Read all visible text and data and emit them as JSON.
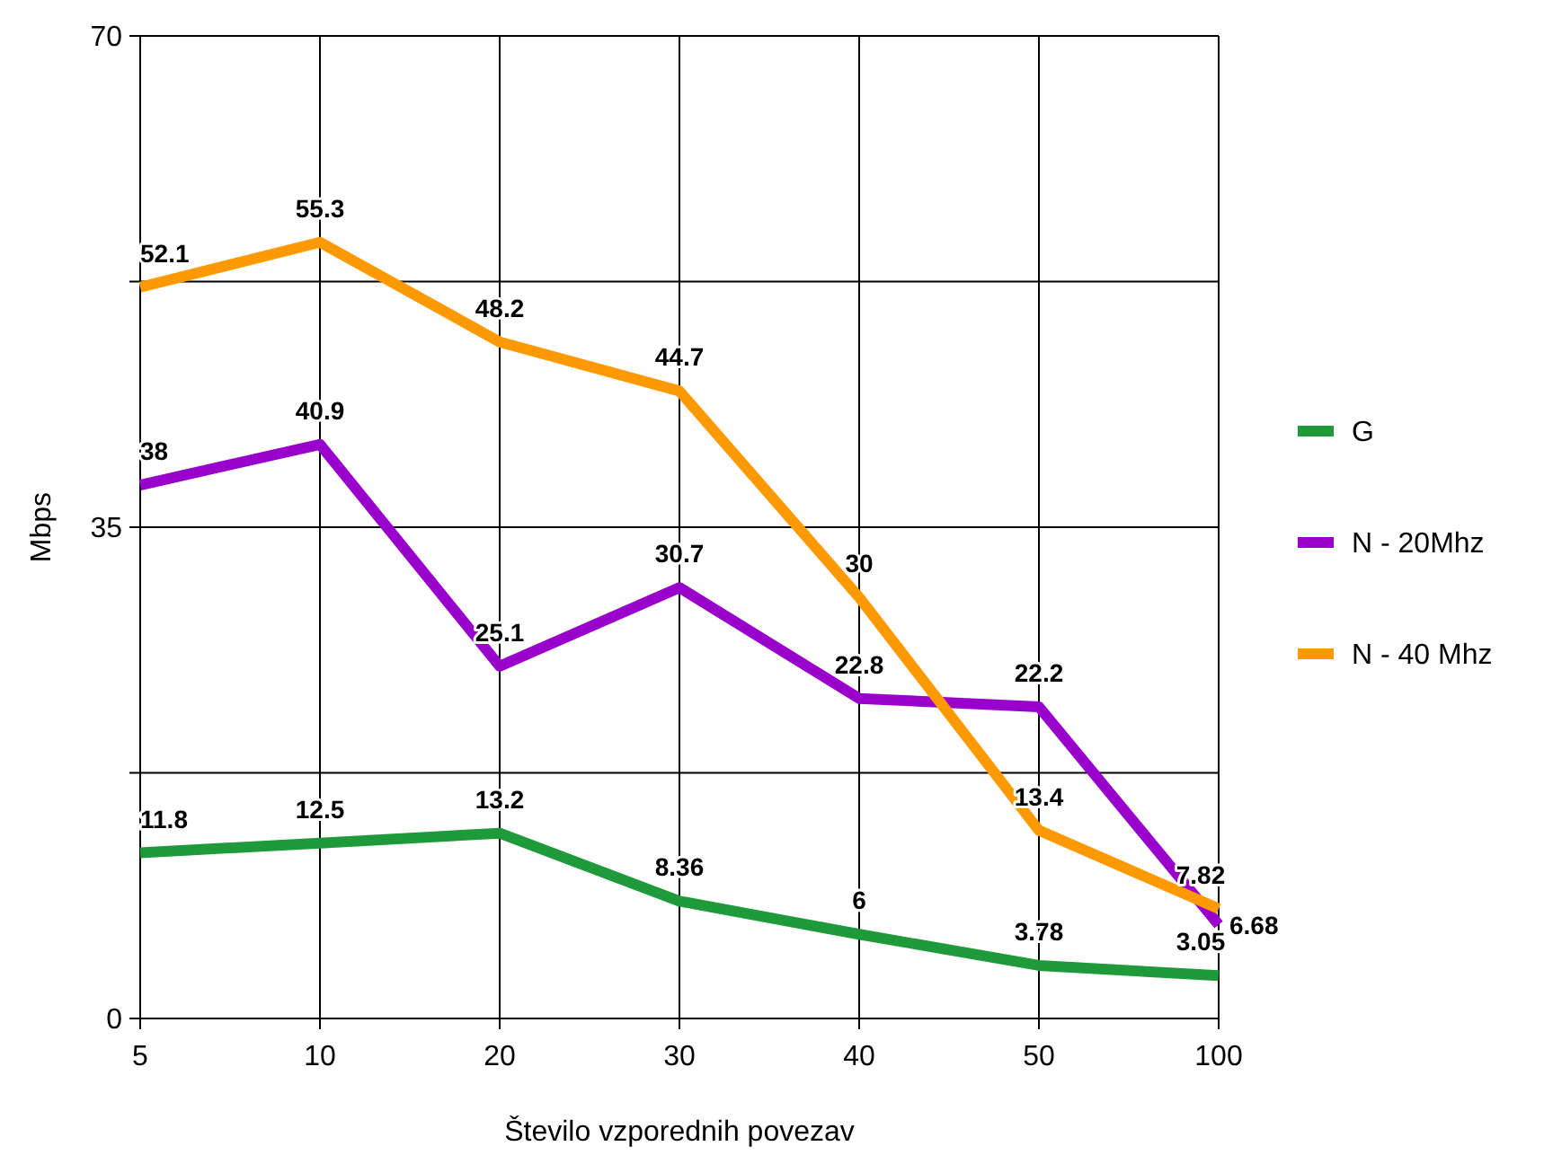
{
  "chart_data": {
    "type": "line",
    "xlabel": "Število vzporednih povezav",
    "ylabel": "Mbps",
    "categories": [
      "5",
      "10",
      "20",
      "30",
      "40",
      "50",
      "100"
    ],
    "series": [
      {
        "name": "G",
        "color": "#1f9a3a",
        "values": [
          11.8,
          12.5,
          13.2,
          8.36,
          6,
          3.78,
          3.05
        ]
      },
      {
        "name": "N - 20Mhz",
        "color": "#9900cc",
        "values": [
          38,
          40.9,
          25.1,
          30.7,
          22.8,
          22.2,
          6.68
        ]
      },
      {
        "name": "N - 40 Mhz",
        "color": "#ff9900",
        "values": [
          52.1,
          55.3,
          48.2,
          44.7,
          30,
          13.4,
          7.82
        ]
      }
    ],
    "ylim": [
      0,
      70
    ],
    "yticks": [
      0,
      {
        "value": 17.5,
        "label": null
      },
      35,
      {
        "value": 52.5,
        "label": null
      },
      70
    ],
    "grid": true,
    "legend": "right",
    "data_labels": true,
    "marker": "none",
    "line_style": "solid"
  }
}
